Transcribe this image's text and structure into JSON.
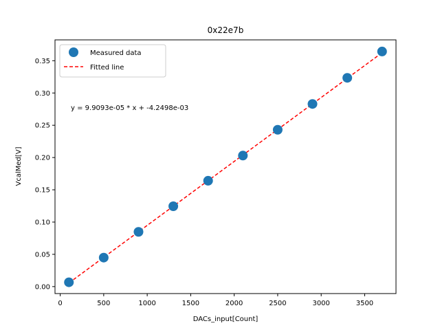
{
  "chart_data": {
    "type": "scatter",
    "title": "0x22e7b",
    "xlabel": "DACs_input[Count]",
    "ylabel": "VcalMed[V]",
    "xlim": [
      -60,
      3860
    ],
    "ylim": [
      -0.0108,
      0.3823
    ],
    "xticks": [
      0,
      500,
      1000,
      1500,
      2000,
      2500,
      3000,
      3500
    ],
    "yticks": [
      0.0,
      0.05,
      0.1,
      0.15,
      0.2,
      0.25,
      0.3,
      0.35
    ],
    "xtick_labels": [
      "0",
      "500",
      "1000",
      "1500",
      "2000",
      "2500",
      "3000",
      "3500"
    ],
    "ytick_labels": [
      "0.00",
      "0.05",
      "0.10",
      "0.15",
      "0.20",
      "0.25",
      "0.30",
      "0.35"
    ],
    "series": [
      {
        "name": "Measured data",
        "kind": "scatter",
        "color": "#1f77b4",
        "x": [
          100,
          500,
          900,
          1300,
          1700,
          2100,
          2500,
          2900,
          3300,
          3700
        ],
        "y": [
          0.0067,
          0.0449,
          0.0848,
          0.1245,
          0.164,
          0.203,
          0.243,
          0.283,
          0.3235,
          0.3643
        ]
      },
      {
        "name": "Fitted line",
        "kind": "line",
        "style": "dashed",
        "color": "#ff0000",
        "x": [
          100,
          3700
        ],
        "y": [
          0.00566,
          0.3624
        ]
      }
    ],
    "legend": {
      "position": "upper-left",
      "entries": [
        "Measured data",
        "Fitted line"
      ]
    },
    "annotation": "y = 9.9093e-05 * x + -4.2498e-03"
  }
}
